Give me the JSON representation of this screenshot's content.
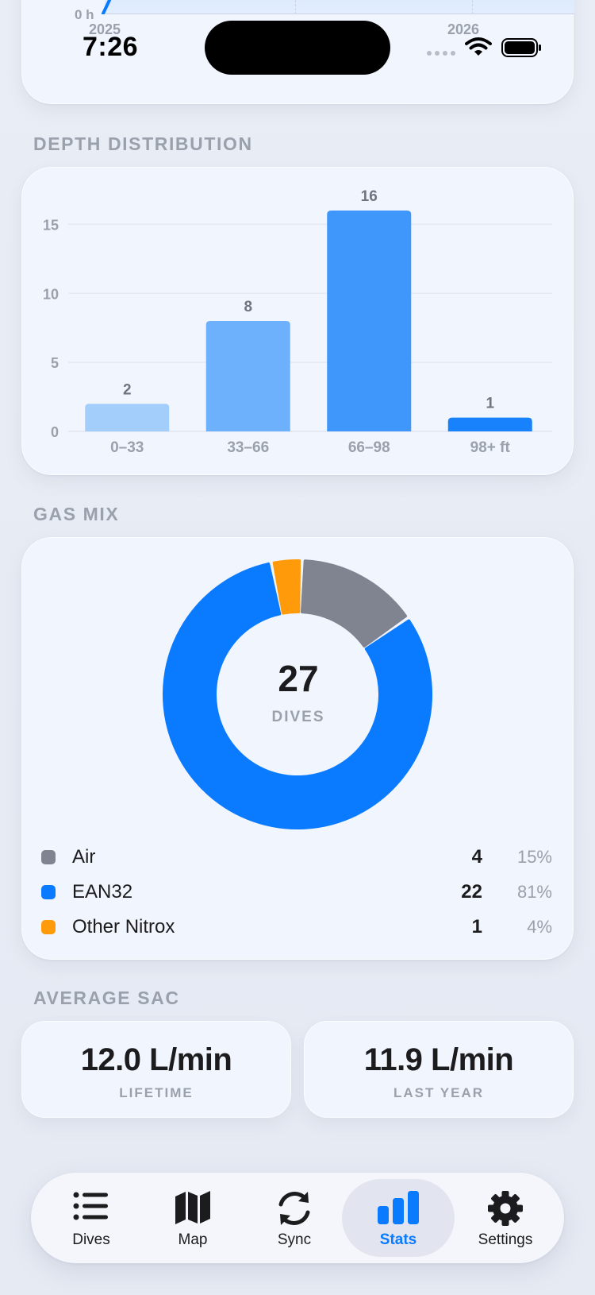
{
  "status_bar": {
    "time": "7:26"
  },
  "top_chart": {
    "y_label": "0 h",
    "x_labels": [
      "2025",
      "2026",
      "2026"
    ]
  },
  "depth": {
    "section_title": "DEPTH DISTRIBUTION"
  },
  "chart_data": {
    "type": "bar",
    "categories": [
      "0–33",
      "33–66",
      "66–98",
      "98+ ft"
    ],
    "values": [
      2,
      8,
      16,
      1
    ],
    "yticks": [
      0,
      5,
      10,
      15
    ],
    "ylim": [
      0,
      17.5
    ],
    "grid": true,
    "colors": [
      "#a3cdfb",
      "#6db0fb",
      "#3f97fb",
      "#1782fb"
    ]
  },
  "gas_mix": {
    "section_title": "GAS MIX",
    "total": "27",
    "total_label": "DIVES",
    "items": [
      {
        "name": "Air",
        "count": "4",
        "percent": "15%",
        "color": "#808390",
        "value": 4
      },
      {
        "name": "EAN32",
        "count": "22",
        "percent": "81%",
        "color": "#0a7aff",
        "value": 22
      },
      {
        "name": "Other Nitrox",
        "count": "1",
        "percent": "4%",
        "color": "#ff9a0a",
        "value": 1
      }
    ]
  },
  "sac": {
    "section_title": "AVERAGE SAC",
    "lifetime_value": "12.0 L/min",
    "lifetime_label": "LIFETIME",
    "last_year_value": "11.9 L/min",
    "last_year_label": "LAST YEAR"
  },
  "tab_bar": {
    "tabs": [
      {
        "label": "Dives"
      },
      {
        "label": "Map"
      },
      {
        "label": "Sync"
      },
      {
        "label": "Stats"
      },
      {
        "label": "Settings"
      }
    ],
    "active_index": 3
  }
}
